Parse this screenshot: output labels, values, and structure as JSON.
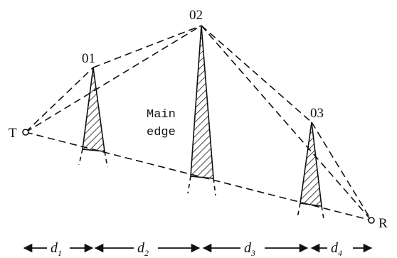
{
  "labels": {
    "transmitter": "T",
    "receiver": "R",
    "obstacle_1": "01",
    "obstacle_2": "02",
    "obstacle_3": "03",
    "main_edge_line1": "Main",
    "main_edge_line2": "edge"
  },
  "distances": [
    {
      "symbol": "d",
      "sub": "1"
    },
    {
      "symbol": "d",
      "sub": "2"
    },
    {
      "symbol": "d",
      "sub": "3"
    },
    {
      "symbol": "d",
      "sub": "4"
    }
  ]
}
